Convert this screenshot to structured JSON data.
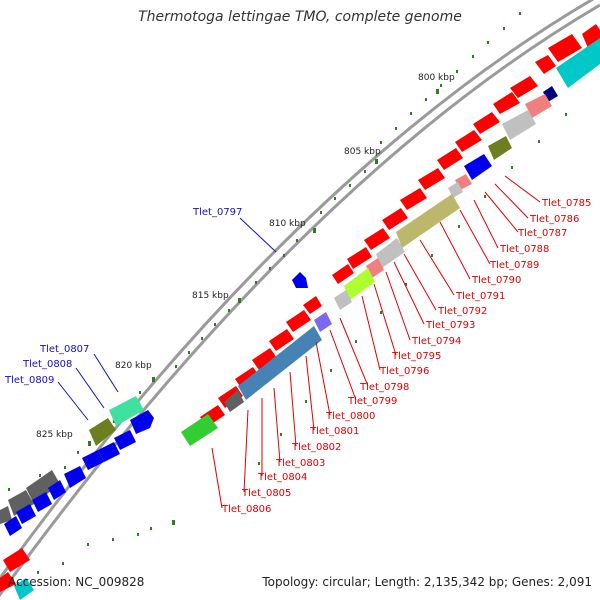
{
  "title": "Thermotoga lettingae TMO, complete genome",
  "accession": "Accession: NC_009828",
  "topology": "Topology: circular; Length: 2,135,342 bp; Genes: 2,091",
  "colors": {
    "backbone": "#9a9a9a",
    "tick": "#2e7d1e",
    "red_label": "#e00000",
    "blue_label": "#1010cc",
    "red_gene": "#ff0000",
    "blue_gene": "#0000ee"
  },
  "kbp_labels": [
    "800 kbp",
    "805 kbp",
    "810 kbp",
    "815 kbp",
    "820 kbp",
    "825 kbp"
  ],
  "red_labels": [
    "Tlet_0785",
    "Tlet_0786",
    "Tlet_0787",
    "Tlet_0788",
    "Tlet_0789",
    "Tlet_0790",
    "Tlet_0791",
    "Tlet_0792",
    "Tlet_0793",
    "Tlet_0794",
    "Tlet_0795",
    "Tlet_0796",
    "Tlet_0798",
    "Tlet_0799",
    "Tlet_0800",
    "Tlet_0801",
    "Tlet_0802",
    "Tlet_0803",
    "Tlet_0804",
    "Tlet_0805",
    "Tlet_0806"
  ],
  "blue_labels": [
    "Tlet_0797",
    "Tlet_0807",
    "Tlet_0808",
    "Tlet_0809"
  ]
}
